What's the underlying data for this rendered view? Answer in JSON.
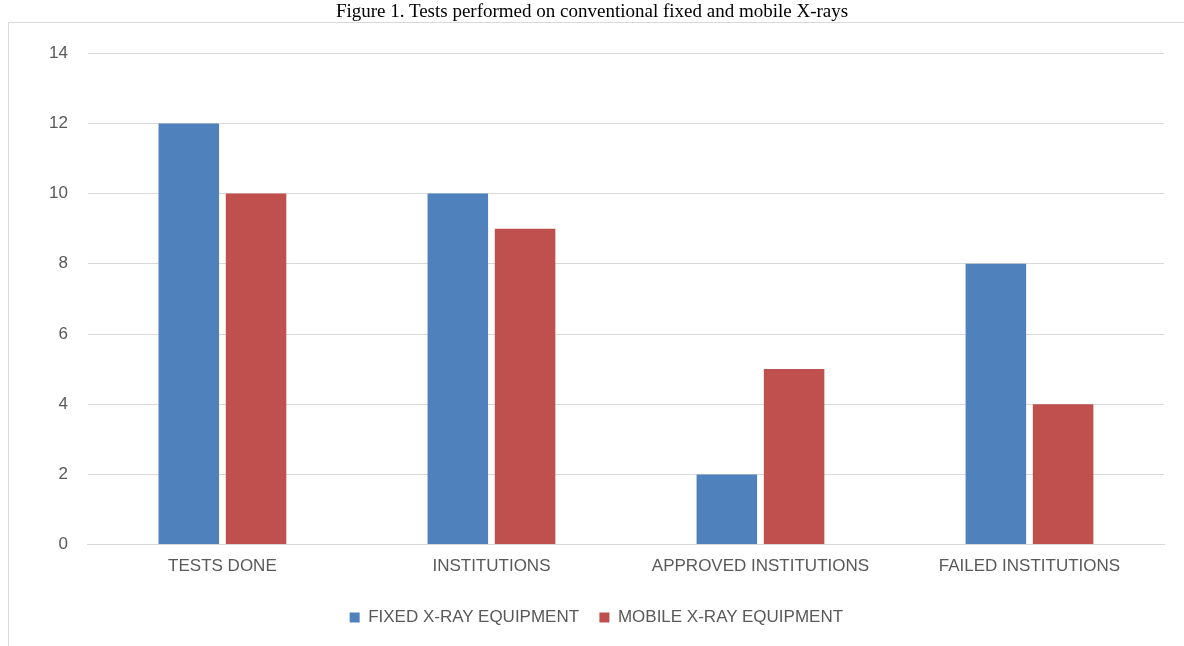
{
  "chart_data": {
    "type": "bar",
    "title": "Figure 1. Tests performed on conventional fixed and mobile X-rays",
    "categories": [
      "TESTS DONE",
      "INSTITUTIONS",
      "APPROVED INSTITUTIONS",
      "FAILED INSTITUTIONS"
    ],
    "series": [
      {
        "name": "FIXED X-RAY EQUIPMENT",
        "color": "#4f81bd",
        "values": [
          12,
          10,
          2,
          8
        ]
      },
      {
        "name": "MOBILE X-RAY EQUIPMENT",
        "color": "#c0504d",
        "values": [
          10,
          9,
          5,
          4
        ]
      }
    ],
    "ylim": [
      0,
      14
    ],
    "yticks": [
      0,
      2,
      4,
      6,
      8,
      10,
      12,
      14
    ],
    "grid": "y",
    "legend": "bottom"
  }
}
